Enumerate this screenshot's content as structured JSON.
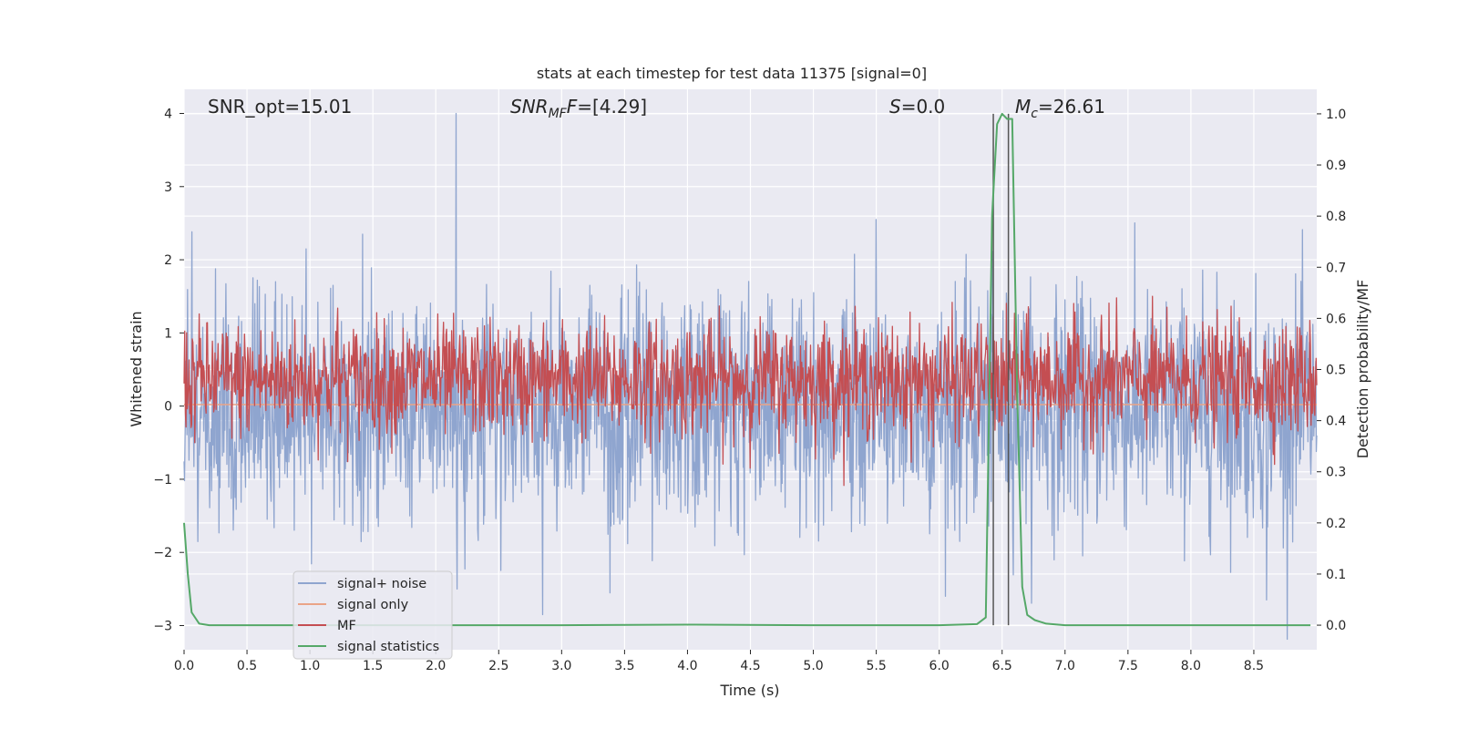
{
  "chart_data": {
    "type": "line",
    "title": "stats at each timestep for test data 11375 [signal=0]",
    "xlabel": "Time (s)",
    "ylabel": "Whitened strain",
    "y2label": "Detection probability/MF",
    "xlim": [
      0,
      9.0
    ],
    "ylim": [
      -3.33,
      4.33
    ],
    "y2lim": [
      -0.048,
      1.048
    ],
    "xticks": [
      "0.0",
      "0.5",
      "1.0",
      "1.5",
      "2.0",
      "2.5",
      "3.0",
      "3.5",
      "4.0",
      "4.5",
      "5.0",
      "5.5",
      "6.0",
      "6.5",
      "7.0",
      "7.5",
      "8.0",
      "8.5"
    ],
    "yticks": [
      "4",
      "3",
      "2",
      "1",
      "0",
      "−1",
      "−2",
      "−3"
    ],
    "y2ticks": [
      "1.0",
      "0.9",
      "0.8",
      "0.7",
      "0.6",
      "0.5",
      "0.4",
      "0.3",
      "0.2",
      "0.1",
      "0.0"
    ],
    "annotations": {
      "snr_opt": "SNR_opt=15.01",
      "snr_mf_main": "SNR",
      "snr_mf_sub": "MF",
      "snr_mf_tail": "=[4.29]",
      "s_italic": "S",
      "s_tail": "=0.0",
      "mc_main": "M",
      "mc_sub": "c",
      "mc_tail": "=26.61"
    },
    "legend": {
      "location": "lower-left",
      "entries": [
        {
          "label": "signal+ noise",
          "color": "#8fa5cf"
        },
        {
          "label": "signal only",
          "color": "#eaa487"
        },
        {
          "label": "MF",
          "color": "#c44e52"
        },
        {
          "label": "signal statistics",
          "color": "#55a868"
        }
      ]
    },
    "series": [
      {
        "name": "signal+ noise",
        "axis": "left",
        "color": "#8fa5cf",
        "kind": "noise",
        "duration": 9.0,
        "samples": 2304,
        "std": 0.78,
        "mean": -0.05,
        "spikes": [
          [
            2.16,
            4.0
          ],
          [
            2.17,
            -2.5
          ],
          [
            2.85,
            -2.85
          ],
          [
            1.42,
            2.35
          ],
          [
            5.5,
            2.55
          ],
          [
            6.05,
            -2.6
          ],
          [
            8.6,
            -2.65
          ]
        ]
      },
      {
        "name": "signal only",
        "axis": "left",
        "color": "#eaa487",
        "kind": "flat",
        "value": 0.02
      },
      {
        "name": "MF",
        "axis": "right",
        "color": "#c44e52",
        "kind": "noise",
        "duration": 9.0,
        "samples": 1800,
        "mean": 0.48,
        "std": 0.055,
        "spikes": [
          [
            1.22,
            0.62
          ],
          [
            6.6,
            0.61
          ],
          [
            7.35,
            0.63
          ],
          [
            6.45,
            0.47
          ]
        ]
      },
      {
        "name": "signal statistics",
        "axis": "right",
        "color": "#55a868",
        "kind": "line",
        "x": [
          0.0,
          0.03,
          0.06,
          0.12,
          0.2,
          0.4,
          1.0,
          2.0,
          3.0,
          4.0,
          5.0,
          6.0,
          6.3,
          6.37,
          6.42,
          6.46,
          6.5,
          6.54,
          6.58,
          6.62,
          6.66,
          6.7,
          6.76,
          6.85,
          7.0,
          7.5,
          8.0,
          8.5,
          8.95
        ],
        "y": [
          0.2,
          0.1,
          0.025,
          0.003,
          0.0,
          0.0,
          0.0,
          0.0,
          0.0,
          0.001,
          0.0,
          0.0,
          0.002,
          0.015,
          0.8,
          0.98,
          1.0,
          0.99,
          0.99,
          0.45,
          0.075,
          0.02,
          0.01,
          0.003,
          0.0,
          0.0,
          0.0,
          0.0,
          0.0
        ]
      }
    ],
    "vlines": [
      6.43,
      6.55
    ]
  }
}
